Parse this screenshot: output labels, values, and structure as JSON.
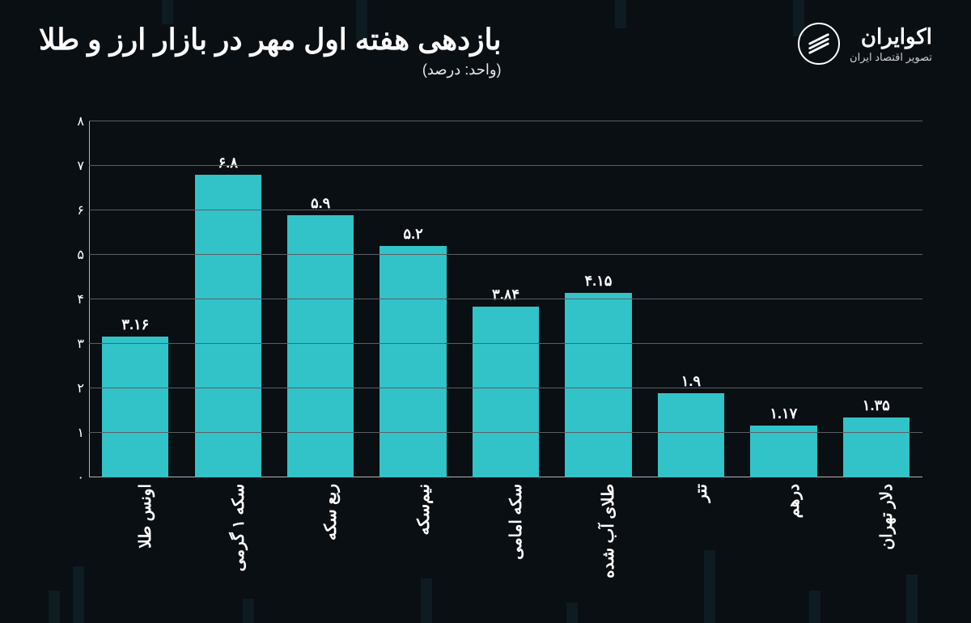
{
  "header": {
    "title": "بازدهی هفته اول مهر در بازار ارز و طلا",
    "subtitle": "(واحد: درصد)",
    "logo_name": "اکوایران",
    "logo_tag": "تصویر اقتصاد ایران"
  },
  "chart": {
    "type": "bar",
    "background_color": "#0a0f14",
    "bar_color": "#32c3c8",
    "grid_color": "#5a5f63",
    "axis_color": "#b0b4b7",
    "text_color": "#ffffff",
    "title_fontsize": 36,
    "label_fontsize": 20,
    "value_fontsize": 18,
    "tick_fontsize": 16,
    "ylim": [
      0,
      8
    ],
    "ytick_step": 1,
    "yticks": [
      "۰",
      "۱",
      "۲",
      "۳",
      "۴",
      "۵",
      "۶",
      "۷",
      "۸"
    ],
    "bar_width_ratio": 0.72,
    "categories": [
      "دلار تهران",
      "درهم",
      "تتر",
      "طلای آب شده",
      "سکه امامی",
      "نیم‌سکه",
      "ربع سکه",
      "سکه ۱ گرمی",
      "اونس طلا"
    ],
    "values": [
      1.35,
      1.17,
      1.9,
      4.15,
      3.84,
      5.2,
      5.9,
      6.8,
      3.16
    ],
    "value_labels": [
      "۱.۳۵",
      "۱.۱۷",
      "۱.۹",
      "۴.۱۵",
      "۳.۸۴",
      "۵.۲",
      "۵.۹",
      "۶.۸",
      "۳.۱۶"
    ]
  }
}
